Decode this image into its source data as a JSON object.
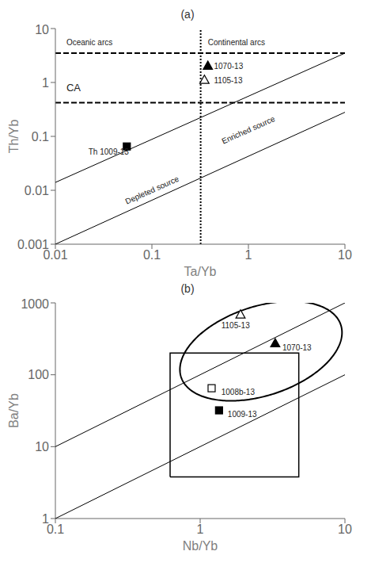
{
  "chart_data": [
    {
      "type": "scatter",
      "title": "(a)",
      "x_label": "Ta/Yb",
      "y_label": "Th/Yb",
      "log": true,
      "xlim": [
        0.01,
        10
      ],
      "ylim": [
        0.001,
        10
      ],
      "xticks": [
        0.01,
        0.1,
        1,
        10
      ],
      "yticks": [
        0.001,
        0.01,
        0.1,
        1,
        10
      ],
      "points": [
        {
          "x": 0.055,
          "y": 0.065,
          "marker": "square",
          "color": "black",
          "label": "Th 1009-13",
          "label_x": 0.022,
          "label_y": 0.052
        },
        {
          "x": 0.38,
          "y": 2.0,
          "marker": "triangle",
          "color": "black",
          "label": "1070-13",
          "label_x": 0.44,
          "label_y": 2.0
        },
        {
          "x": 0.35,
          "y": 1.1,
          "marker": "triangle",
          "color": "white",
          "label": "1105-13",
          "label_x": 0.44,
          "label_y": 1.1
        }
      ],
      "lines": [
        {
          "x": [
            0.01,
            10
          ],
          "y": [
            0.001,
            0.28
          ],
          "label": "Depleted source",
          "label_x": 0.055,
          "label_y": 0.0055
        },
        {
          "x": [
            0.01,
            10
          ],
          "y": [
            0.014,
            3.5
          ],
          "label": "Enriched source",
          "label_x": 0.55,
          "label_y": 0.072
        }
      ],
      "hlines": [
        {
          "y": 3.5,
          "line_style": "dashed"
        },
        {
          "y": 0.42,
          "line_style": "dashed"
        }
      ],
      "vlines": [
        {
          "x": 0.32,
          "line_style": "dotted"
        }
      ],
      "annotations": [
        {
          "text": "CA",
          "x": 0.013,
          "y": 0.8
        },
        {
          "text": "Oceanic arcs",
          "x": 0.013,
          "y": 5.5
        },
        {
          "text": "Continental arcs",
          "x": 0.38,
          "y": 5.5
        }
      ]
    },
    {
      "type": "scatter",
      "title": "(b)",
      "x_label": "Nb/Yb",
      "y_label": "Ba/Yb",
      "log": true,
      "xlim": [
        0.1,
        10
      ],
      "ylim": [
        1,
        1000
      ],
      "xticks": [
        0.1,
        1,
        10
      ],
      "yticks": [
        1,
        10,
        100,
        1000
      ],
      "points": [
        {
          "x": 1.35,
          "y": 32,
          "marker": "square",
          "color": "black",
          "label": "1009-13",
          "label_x": 1.55,
          "label_y": 28
        },
        {
          "x": 3.3,
          "y": 270,
          "marker": "triangle",
          "color": "black",
          "label": "1070-13",
          "label_x": 3.7,
          "label_y": 240
        },
        {
          "x": 1.9,
          "y": 680,
          "marker": "triangle",
          "color": "white",
          "label": "1105-13",
          "label_x": 1.4,
          "label_y": 480
        },
        {
          "x": 1.2,
          "y": 65,
          "marker": "square",
          "color": "white",
          "label": "1008b-13",
          "label_x": 1.4,
          "label_y": 58
        }
      ],
      "lines": [
        {
          "x": [
            0.1,
            10
          ],
          "y": [
            1.0,
            100
          ]
        },
        {
          "x": [
            0.1,
            10
          ],
          "y": [
            10,
            1000
          ]
        }
      ],
      "rectangle": {
        "x1": 0.62,
        "x2": 4.8,
        "y1": 3.8,
        "y2": 200
      },
      "ellipse": {
        "cx_log": 0.42,
        "cy_log": 2.33,
        "a_log": 0.48,
        "b_log": 0.75,
        "angle_deg": -30
      }
    }
  ]
}
